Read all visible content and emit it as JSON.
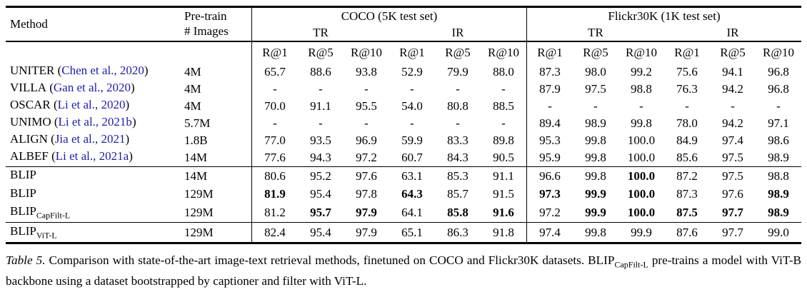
{
  "colors": {
    "citation": "#1b1bb3",
    "text": "#000000",
    "rule": "#000000"
  },
  "header": {
    "method_label": "Method",
    "pretrain_line1": "Pre-train",
    "pretrain_line2": "# Images",
    "coco_title": "COCO (5K test set)",
    "flickr_title": "Flickr30K (1K test set)",
    "coco_tr": "TR",
    "coco_ir": "IR",
    "flickr_tr": "TR",
    "flickr_ir": "IR",
    "metrics": [
      "R@1",
      "R@5",
      "R@10",
      "R@1",
      "R@5",
      "R@10",
      "R@1",
      "R@5",
      "R@10",
      "R@1",
      "R@5",
      "R@10"
    ]
  },
  "rows": [
    {
      "method": "UNITER",
      "cite_open": " (",
      "citation": "Chen et al., 2020",
      "cite_close": ")",
      "subscript": "",
      "pretrain": "4M",
      "values": [
        "65.7",
        "88.6",
        "93.8",
        "52.9",
        "79.9",
        "88.0",
        "87.3",
        "98.0",
        "99.2",
        "75.6",
        "94.1",
        "96.8"
      ],
      "bold": [
        false,
        false,
        false,
        false,
        false,
        false,
        false,
        false,
        false,
        false,
        false,
        false
      ]
    },
    {
      "method": "VILLA",
      "cite_open": " (",
      "citation": "Gan et al., 2020",
      "cite_close": ")",
      "subscript": "",
      "pretrain": "4M",
      "values": [
        "-",
        "-",
        "-",
        "-",
        "-",
        "-",
        "87.9",
        "97.5",
        "98.8",
        "76.3",
        "94.2",
        "96.8"
      ],
      "bold": [
        false,
        false,
        false,
        false,
        false,
        false,
        false,
        false,
        false,
        false,
        false,
        false
      ]
    },
    {
      "method": "OSCAR",
      "cite_open": " (",
      "citation": "Li et al., 2020",
      "cite_close": ")",
      "subscript": "",
      "pretrain": "4M",
      "values": [
        "70.0",
        "91.1",
        "95.5",
        "54.0",
        "80.8",
        "88.5",
        "-",
        "-",
        "-",
        "-",
        "-",
        "-"
      ],
      "bold": [
        false,
        false,
        false,
        false,
        false,
        false,
        false,
        false,
        false,
        false,
        false,
        false
      ]
    },
    {
      "method": "UNIMO",
      "cite_open": " (",
      "citation": "Li et al., 2021b",
      "cite_close": ")",
      "subscript": "",
      "pretrain": "5.7M",
      "values": [
        "-",
        "-",
        "-",
        "-",
        "-",
        "-",
        "89.4",
        "98.9",
        "99.8",
        "78.0",
        "94.2",
        "97.1"
      ],
      "bold": [
        false,
        false,
        false,
        false,
        false,
        false,
        false,
        false,
        false,
        false,
        false,
        false
      ]
    },
    {
      "method": "ALIGN",
      "cite_open": " (",
      "citation": "Jia et al., 2021",
      "cite_close": ")",
      "subscript": "",
      "pretrain": "1.8B",
      "values": [
        "77.0",
        "93.5",
        "96.9",
        "59.9",
        "83.3",
        "89.8",
        "95.3",
        "99.8",
        "100.0",
        "84.9",
        "97.4",
        "98.6"
      ],
      "bold": [
        false,
        false,
        false,
        false,
        false,
        false,
        false,
        false,
        false,
        false,
        false,
        false
      ]
    },
    {
      "method": "ALBEF",
      "cite_open": " (",
      "citation": "Li et al., 2021a",
      "cite_close": ")",
      "subscript": "",
      "pretrain": "14M",
      "values": [
        "77.6",
        "94.3",
        "97.2",
        "60.7",
        "84.3",
        "90.5",
        "95.9",
        "99.8",
        "100.0",
        "85.6",
        "97.5",
        "98.9"
      ],
      "bold": [
        false,
        false,
        false,
        false,
        false,
        false,
        false,
        false,
        false,
        false,
        false,
        false
      ]
    },
    {
      "method": "BLIP",
      "subscript": "",
      "pretrain": "14M",
      "values": [
        "80.6",
        "95.2",
        "97.6",
        "63.1",
        "85.3",
        "91.1",
        "96.6",
        "99.8",
        "100.0",
        "87.2",
        "97.5",
        "98.8"
      ],
      "bold": [
        false,
        false,
        false,
        false,
        false,
        false,
        false,
        false,
        true,
        false,
        false,
        false
      ]
    },
    {
      "method": "BLIP",
      "subscript": "",
      "pretrain": "129M",
      "values": [
        "81.9",
        "95.4",
        "97.8",
        "64.3",
        "85.7",
        "91.5",
        "97.3",
        "99.9",
        "100.0",
        "87.3",
        "97.6",
        "98.9"
      ],
      "bold": [
        true,
        false,
        false,
        true,
        false,
        false,
        true,
        true,
        true,
        false,
        false,
        true
      ]
    },
    {
      "method": "BLIP",
      "subscript": "CapFilt-L",
      "pretrain": "129M",
      "values": [
        "81.2",
        "95.7",
        "97.9",
        "64.1",
        "85.8",
        "91.6",
        "97.2",
        "99.9",
        "100.0",
        "87.5",
        "97.7",
        "98.9"
      ],
      "bold": [
        false,
        true,
        true,
        false,
        true,
        true,
        false,
        true,
        true,
        true,
        true,
        true
      ]
    },
    {
      "method": "BLIP",
      "subscript": "ViT-L",
      "pretrain": "129M",
      "values": [
        "82.4",
        "95.4",
        "97.9",
        "65.1",
        "86.3",
        "91.8",
        "97.4",
        "99.8",
        "99.9",
        "87.6",
        "97.7",
        "99.0"
      ],
      "bold": [
        false,
        false,
        false,
        false,
        false,
        false,
        false,
        false,
        false,
        false,
        false,
        false
      ]
    }
  ],
  "caption": {
    "label": "Table 5.",
    "text1": "Comparison with state-of-the-art image-text retrieval methods, finetuned on COCO and Flickr30K datasets. BLIP",
    "subscript": "CapFilt-L",
    "text2": " pre-trains a model with ViT-B backbone using a dataset bootstrapped by captioner and filter with ViT-L."
  }
}
